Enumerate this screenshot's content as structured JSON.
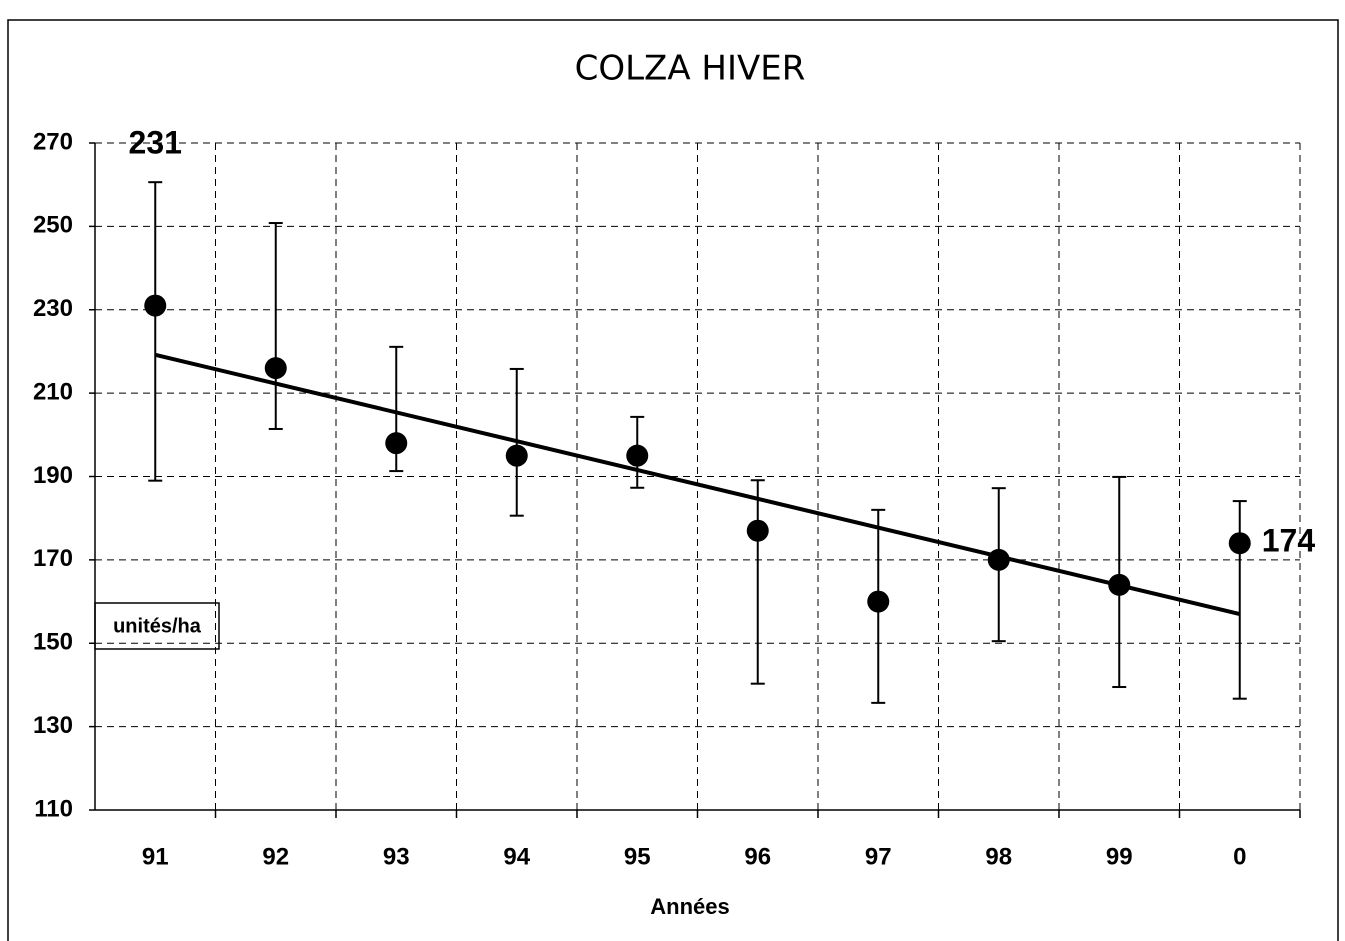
{
  "chart_data": {
    "type": "errorbar",
    "title": "COLZA HIVER",
    "x_label": "Années",
    "y_label": "unités/ha",
    "categories": [
      "91",
      "92",
      "93",
      "94",
      "95",
      "96",
      "97",
      "98",
      "99",
      "0"
    ],
    "values": [
      231,
      216,
      198,
      195,
      195,
      177,
      160,
      170,
      164,
      174
    ],
    "value_labels": [
      "231",
      null,
      null,
      null,
      null,
      null,
      null,
      null,
      null,
      "174"
    ],
    "error_upper": [
      260.6,
      250.8,
      221.1,
      215.8,
      204.3,
      189.1,
      182,
      187.2,
      189.9,
      184.1
    ],
    "error_lower": [
      189,
      201.4,
      191.3,
      180.6,
      187.3,
      140.3,
      135.7,
      150.5,
      139.5,
      136.7
    ],
    "trendline": [
      219.2,
      157
    ],
    "color": "#000000",
    "ylim": [
      110,
      270
    ],
    "yticks": [
      110,
      130,
      150,
      170,
      190,
      210,
      230,
      250,
      270
    ],
    "grid": true
  }
}
